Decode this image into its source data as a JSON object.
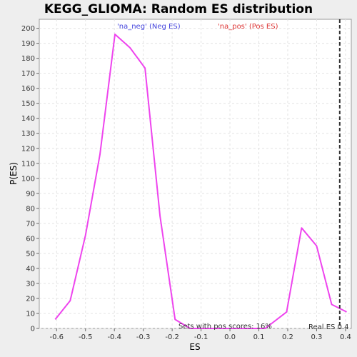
{
  "chart_data": {
    "type": "line",
    "title": "KEGG_GLIOMA: Random ES distribution",
    "xlabel": "ES",
    "ylabel": "P(ES)",
    "xlim": [
      -0.66,
      0.42
    ],
    "ylim": [
      0,
      206
    ],
    "xticks": [
      -0.6,
      -0.5,
      -0.4,
      -0.3,
      -0.2,
      -0.1,
      0.0,
      0.1,
      0.2,
      0.3,
      0.4
    ],
    "xtick_labels": [
      "-0.6",
      "-0.5",
      "-0.4",
      "-0.3",
      "-0.2",
      "-0.1",
      "0.0",
      "0.1",
      "0.2",
      "0.3",
      "0.4"
    ],
    "yticks": [
      0,
      10,
      20,
      30,
      40,
      50,
      60,
      70,
      80,
      90,
      100,
      110,
      120,
      130,
      140,
      150,
      160,
      170,
      180,
      190,
      200
    ],
    "ytick_labels": [
      "0",
      "10",
      "20",
      "30",
      "40",
      "50",
      "60",
      "70",
      "80",
      "90",
      "100",
      "110",
      "120",
      "130",
      "140",
      "150",
      "160",
      "170",
      "180",
      "190",
      "200"
    ],
    "grid": true,
    "series": [
      {
        "name": "",
        "color": "#ee44ee",
        "x": [
          -0.605,
          -0.553,
          -0.5,
          -0.45,
          -0.398,
          -0.346,
          -0.294,
          -0.242,
          -0.19,
          -0.138,
          -0.086,
          -0.034,
          0.018,
          0.07,
          0.122,
          0.196,
          0.248,
          0.3,
          0.352,
          0.404
        ],
        "y": [
          6,
          18.5,
          62,
          116,
          196,
          187,
          173.5,
          75,
          6,
          0,
          0,
          0,
          0,
          0,
          0,
          11,
          67,
          55,
          16,
          11
        ]
      }
    ],
    "real_es": 0.38,
    "annotations": {
      "neg_label": "'na_neg' (Neg ES)",
      "pos_label": "'na_pos' (Pos ES)",
      "pos_scores": "Sets with pos scores: 16%",
      "real_es_label": "Real ES 0.4"
    },
    "colors": {
      "neg": "#4444dd",
      "pos": "#dd3333",
      "grid": "#e3e3e3",
      "plot_bg": "#ffffff",
      "real_es_line": "#333333"
    }
  }
}
